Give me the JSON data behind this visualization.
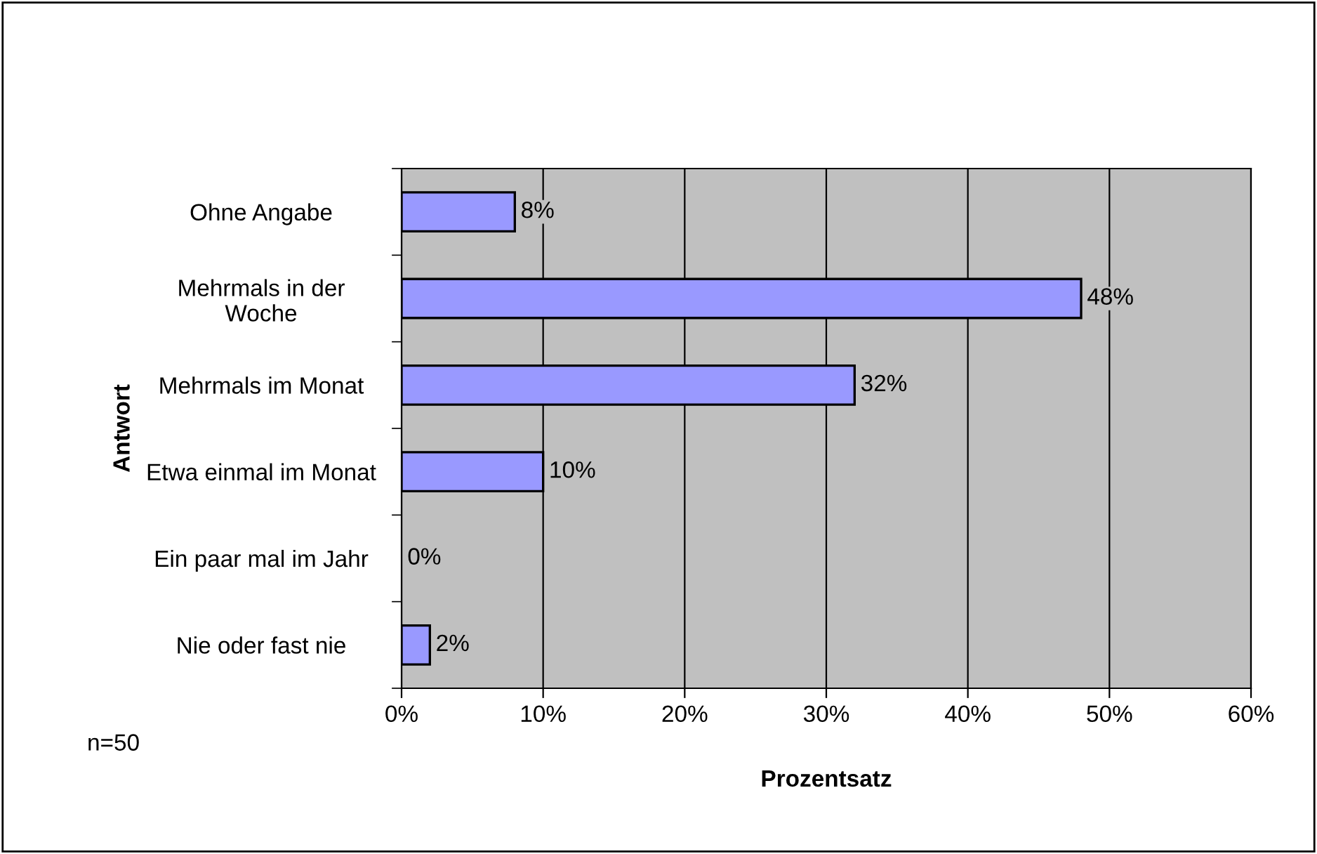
{
  "chart_data": {
    "type": "bar",
    "orientation": "horizontal",
    "xlabel": "Prozentsatz",
    "ylabel": "Antwort",
    "categories": [
      "Ohne Angabe",
      "Mehrmals in der\nWoche",
      "Mehrmals im Monat",
      "Etwa einmal im Monat",
      "Ein paar mal im Jahr",
      "Nie oder fast nie"
    ],
    "values": [
      8,
      48,
      32,
      10,
      0,
      2
    ],
    "value_labels": [
      "8%",
      "48%",
      "32%",
      "10%",
      "0%",
      "2%"
    ],
    "color": "#9999ff",
    "xlim": [
      0,
      60
    ],
    "xticks": [
      {
        "value": 0,
        "label": "0%"
      },
      {
        "value": 10,
        "label": "10%"
      },
      {
        "value": 20,
        "label": "20%"
      },
      {
        "value": 30,
        "label": "30%"
      },
      {
        "value": 40,
        "label": "40%"
      },
      {
        "value": 50,
        "label": "50%"
      },
      {
        "value": 60,
        "label": "60%"
      }
    ],
    "grid": "x",
    "annotations": [
      "n=50"
    ]
  }
}
